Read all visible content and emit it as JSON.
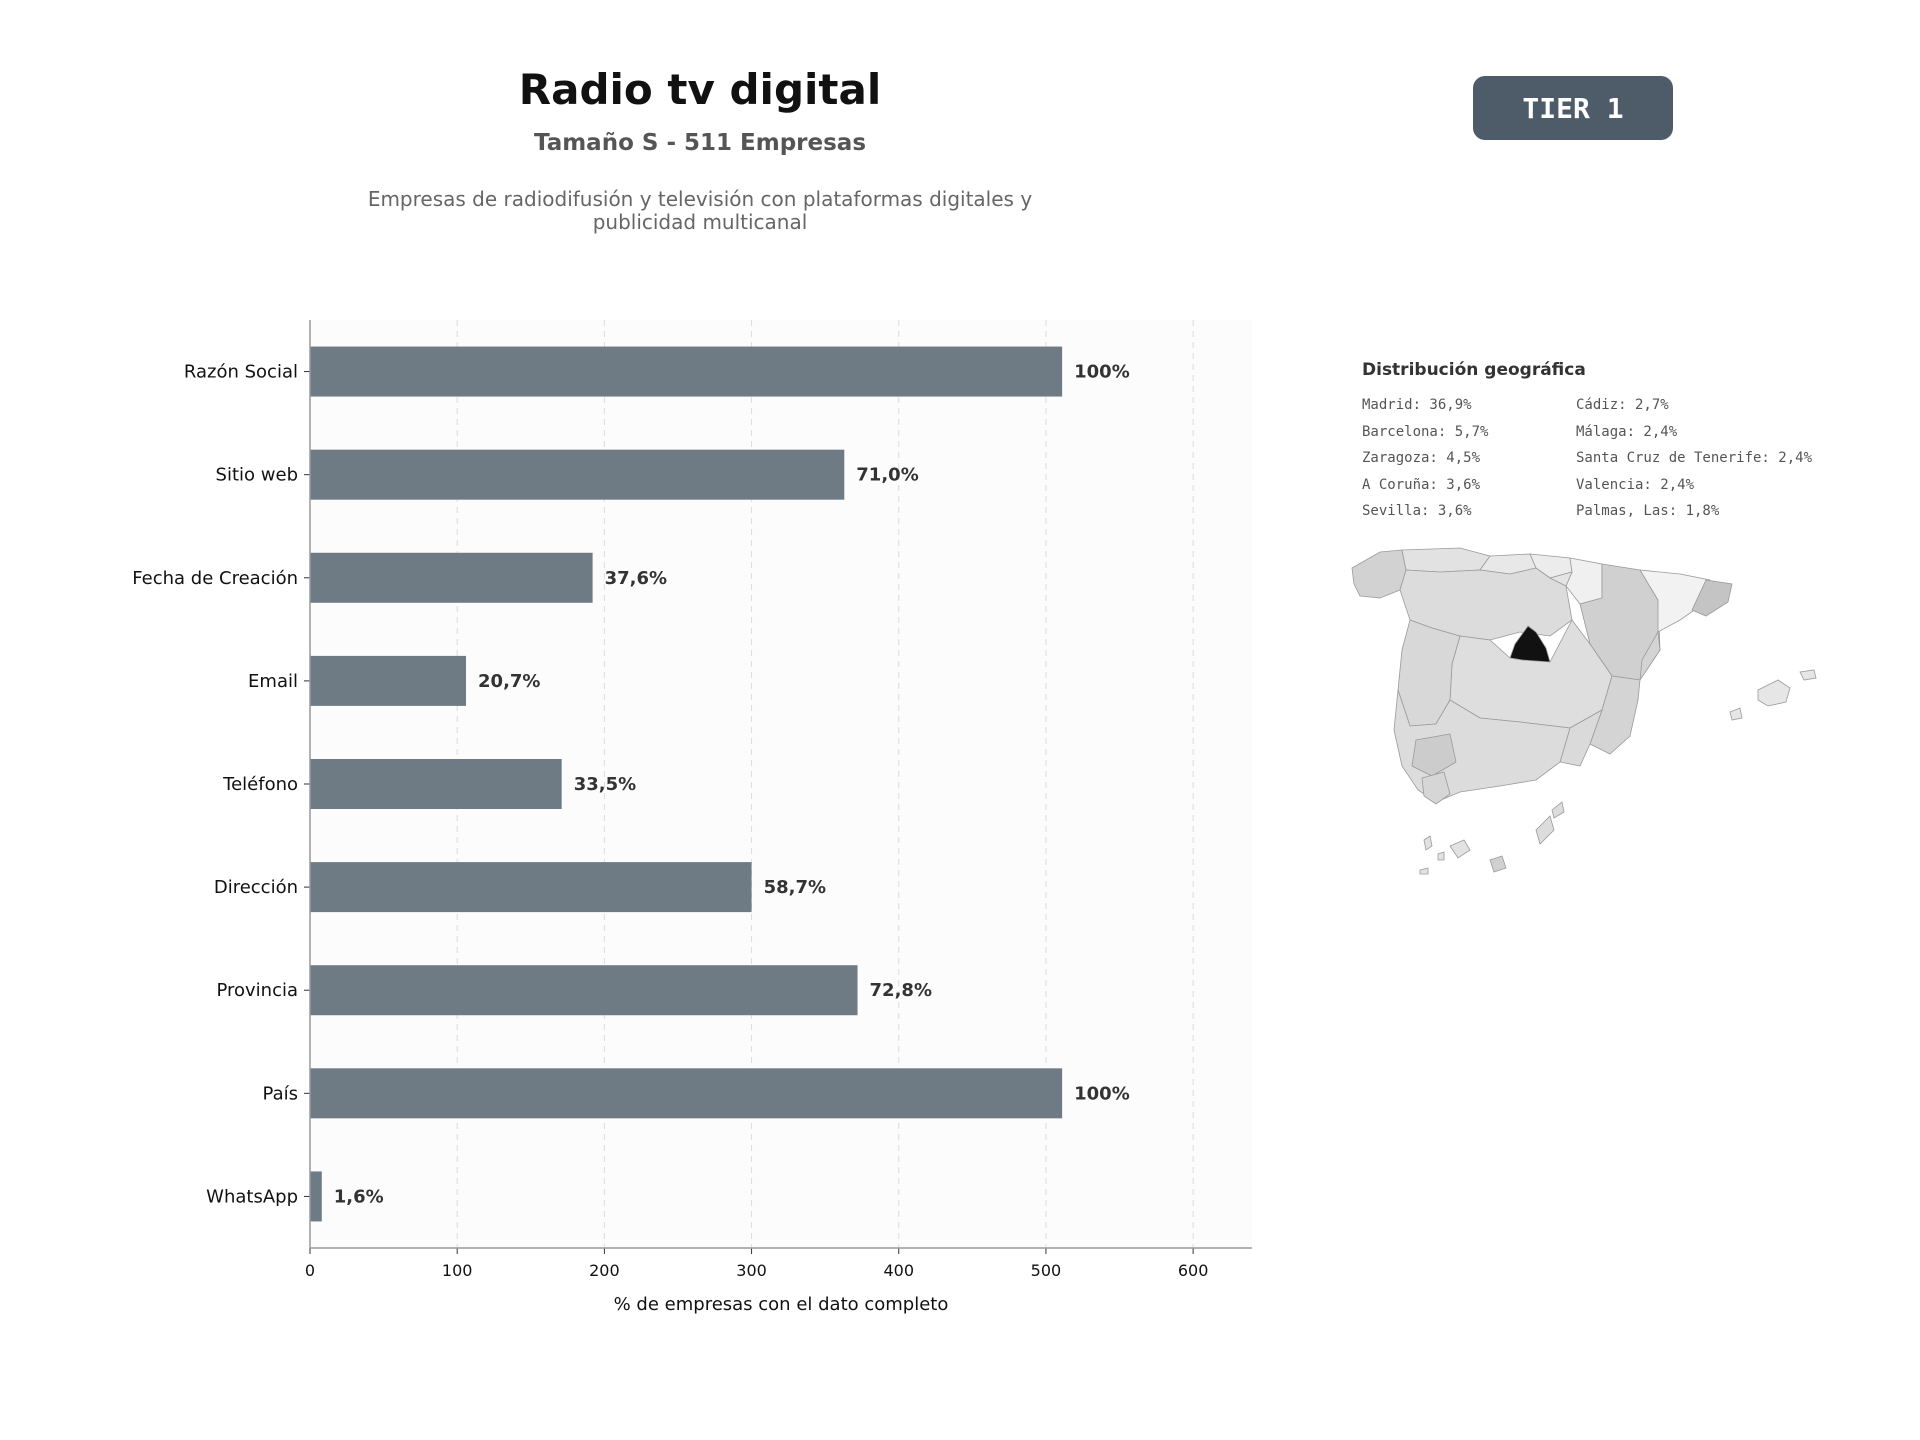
{
  "header": {
    "title": "Radio tv digital",
    "subtitle": "Tamaño S - 511 Empresas",
    "description": "Empresas de radiodifusión y televisión con plataformas digitales y publicidad multicanal"
  },
  "badge": {
    "label": "TIER 1"
  },
  "colors": {
    "bar": "#6e7a84",
    "badge": "#4e5c6a",
    "highlight_region": "#111111",
    "plot_bg": "#fcfcfc"
  },
  "chart_data": {
    "type": "bar",
    "orientation": "horizontal",
    "categories": [
      "Razón Social",
      "Sitio web",
      "Fecha de Creación",
      "Email",
      "Teléfono",
      "Dirección",
      "Provincia",
      "País",
      "WhatsApp"
    ],
    "values": [
      511,
      363,
      192,
      106,
      171,
      300,
      372,
      511,
      8
    ],
    "data_labels": [
      "100%",
      "71,0%",
      "37,6%",
      "20,7%",
      "33,5%",
      "58,7%",
      "72,8%",
      "100%",
      "1,6%"
    ],
    "xlabel": "% de empresas con el dato completo",
    "ylabel": "",
    "xlim": [
      0,
      640
    ],
    "xticks": [
      0,
      100,
      200,
      300,
      400,
      500,
      600
    ],
    "grid": "vertical dashed"
  },
  "geo": {
    "title": "Distribución geográfica",
    "items": [
      "Madrid: 36,9%",
      "Cádiz: 2,7%",
      "Barcelona: 5,7%",
      "Málaga: 2,4%",
      "Zaragoza: 4,5%",
      "Santa Cruz de Tenerife: 2,4%",
      "A Coruña: 3,6%",
      "Valencia: 2,4%",
      "Sevilla: 3,6%",
      "Palmas, Las: 1,8%"
    ],
    "highlighted_region": "Madrid"
  }
}
